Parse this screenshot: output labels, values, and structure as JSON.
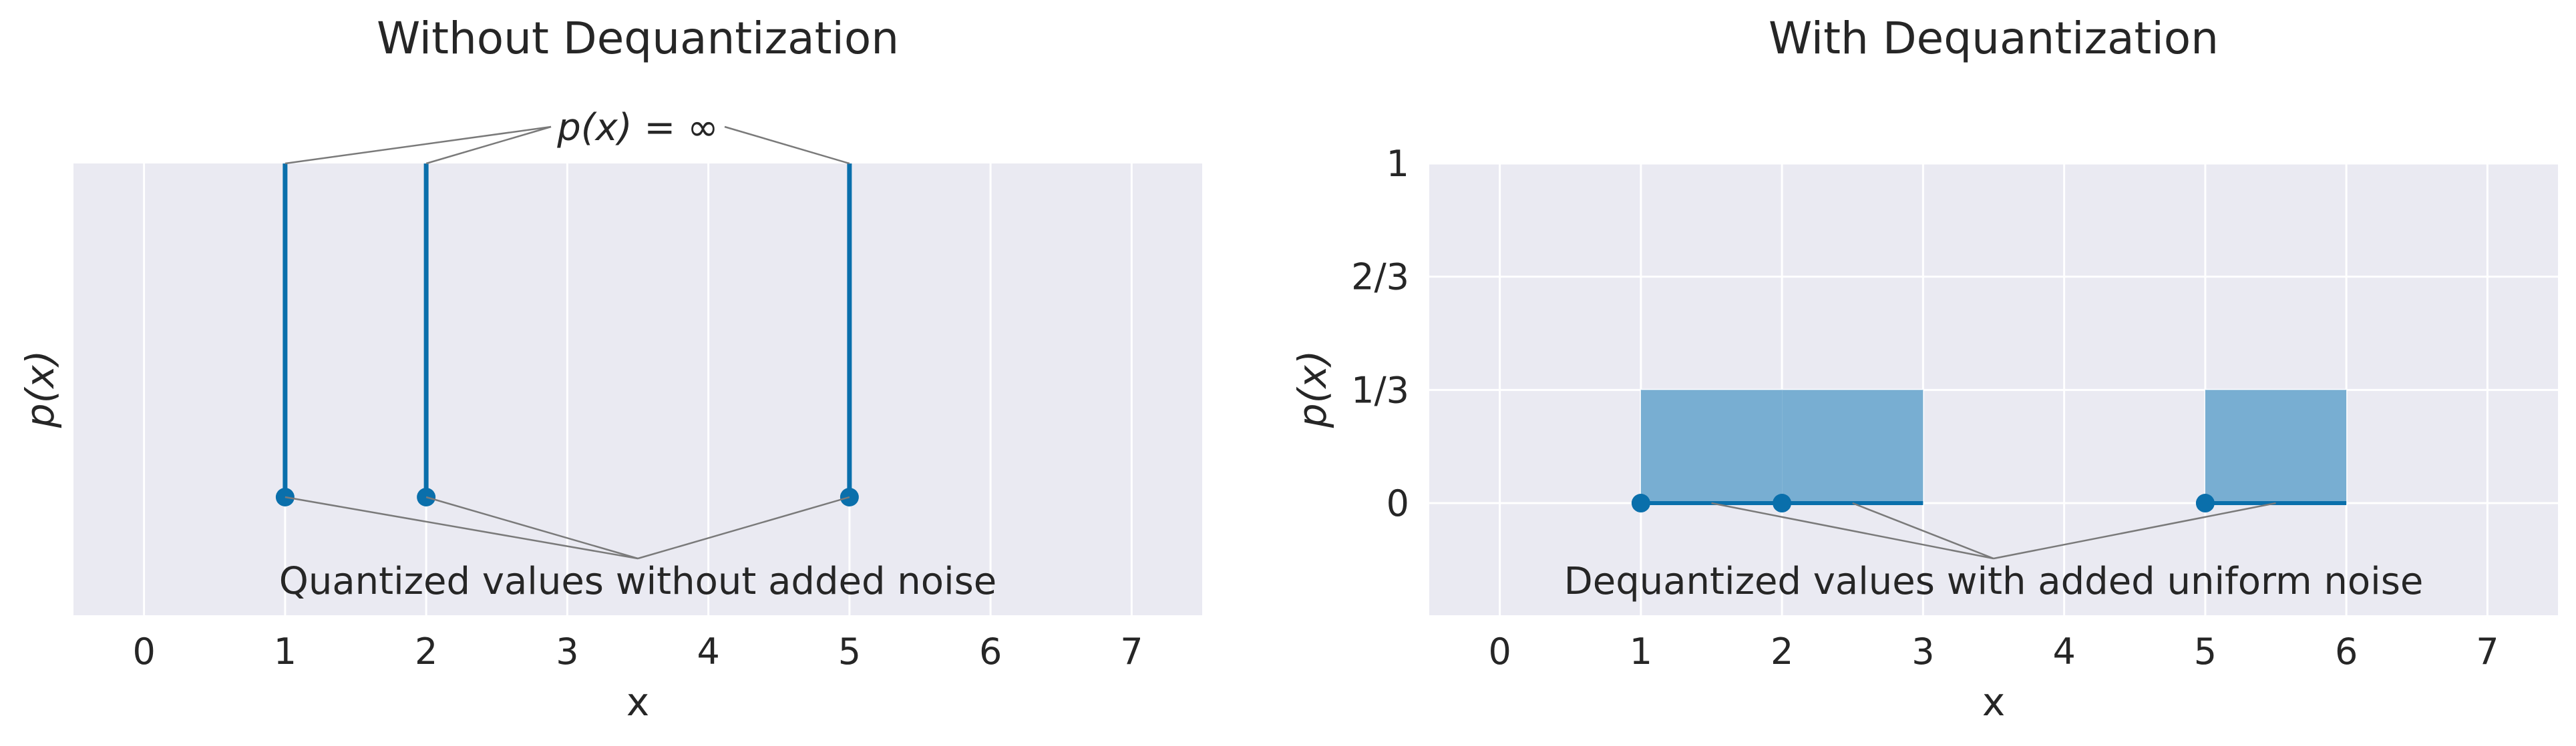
{
  "chart_data": [
    {
      "type": "stem",
      "title": "Without Dequantization",
      "xlabel": "x",
      "ylabel": "p(x)",
      "xlim": [
        -0.5,
        7.5
      ],
      "xticks": [
        "0",
        "1",
        "2",
        "3",
        "4",
        "5",
        "6",
        "7"
      ],
      "yticks": [],
      "grid": true,
      "color": "#0a6fab",
      "series": [
        {
          "x": [
            1,
            2,
            5
          ],
          "y": [
            "∞",
            "∞",
            "∞"
          ]
        }
      ],
      "annotations": {
        "top": "p(x) = ∞",
        "bottom": "Quantized values without added noise"
      }
    },
    {
      "type": "area",
      "title": "With Dequantization",
      "xlabel": "x",
      "ylabel": "p(x)",
      "xlim": [
        -0.5,
        7.5
      ],
      "ylim": [
        -0.33,
        1
      ],
      "xticks": [
        "0",
        "1",
        "2",
        "3",
        "4",
        "5",
        "6",
        "7"
      ],
      "yticks": [
        "0",
        "1/3",
        "2/3",
        "1"
      ],
      "grid": true,
      "color": "#0a6fab",
      "fill_color": "#78aed2",
      "series": [
        {
          "x": [
            1,
            2,
            5
          ],
          "y": [
            0,
            0,
            0
          ]
        }
      ],
      "uniform_intervals": [
        [
          1,
          2
        ],
        [
          2,
          3
        ],
        [
          5,
          6
        ]
      ],
      "density": 0.3333,
      "annotations": {
        "bottom": "Dequantized values with added uniform noise"
      }
    }
  ]
}
